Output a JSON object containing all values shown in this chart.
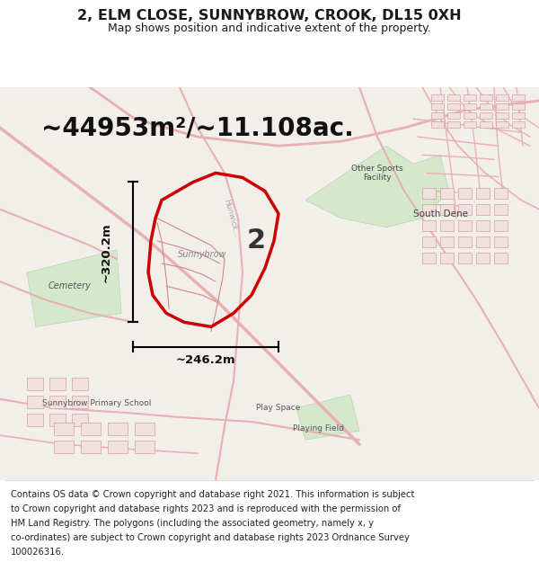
{
  "title": "2, ELM CLOSE, SUNNYBROW, CROOK, DL15 0XH",
  "subtitle": "Map shows position and indicative extent of the property.",
  "area_m2": "~44953m²/~11.108ac.",
  "dim_vertical": "~320.2m",
  "dim_horizontal": "~246.2m",
  "label_number": "2",
  "footer_lines": [
    "Contains OS data © Crown copyright and database right 2021. This information is subject",
    "to Crown copyright and database rights 2023 and is reproduced with the permission of",
    "HM Land Registry. The polygons (including the associated geometry, namely x, y",
    "co-ordinates) are subject to Crown copyright and database rights 2023 Ordnance Survey",
    "100026316."
  ],
  "bg_color": "#f0ede8",
  "map_bg": "#f5f3ef",
  "road_color": "#e8a0a0",
  "highlight_color": "#cc0000",
  "green_area": "#c8dcc8",
  "text_color": "#1a1a1a",
  "fig_width": 6.0,
  "fig_height": 6.25,
  "dpi": 100
}
